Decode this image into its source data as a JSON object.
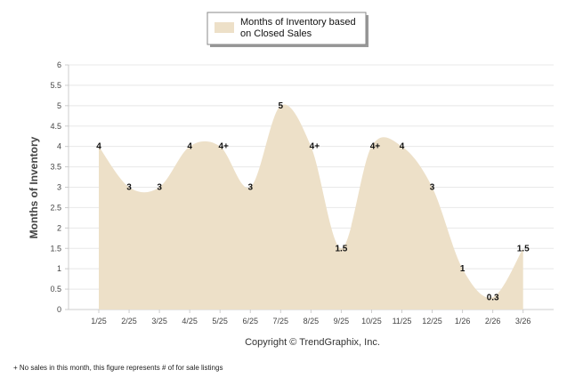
{
  "colors": {
    "area_fill": "#EDE0C8",
    "grid": "#E8E8E8",
    "axis": "#CCCCCC",
    "text": "#444444"
  },
  "legend": {
    "line1": "Months of Inventory based",
    "line2": "on Closed Sales"
  },
  "copyright": "Copyright © TrendGraphix, Inc.",
  "footnote": "+  No sales in this month, this figure represents # of for sale listings",
  "chart_data": {
    "type": "area",
    "title": "",
    "xlabel": "",
    "ylabel": "Months of Inventory",
    "ylim": [
      0,
      6
    ],
    "yticks": [
      "0",
      "0.5",
      "1",
      "1.5",
      "2",
      "2.5",
      "3",
      "3.5",
      "4",
      "4.5",
      "5",
      "5.5",
      "6"
    ],
    "categories": [
      "1/25",
      "2/25",
      "3/25",
      "4/25",
      "5/25",
      "6/25",
      "7/25",
      "8/25",
      "9/25",
      "10/25",
      "11/25",
      "12/25",
      "1/26",
      "2/26",
      "3/26"
    ],
    "series": [
      {
        "name": "Months of Inventory based on Closed Sales",
        "values": [
          4,
          3,
          3,
          4,
          4,
          3,
          5,
          4,
          1.5,
          4,
          4,
          3,
          1,
          0.3,
          1.5
        ],
        "labels": [
          "4",
          "3",
          "3",
          "4",
          "4+",
          "3",
          "5",
          "4+",
          "1.5",
          "4+",
          "4",
          "3",
          "1",
          "0.3",
          "1.5"
        ]
      }
    ],
    "legend_position": "top-center",
    "grid": true
  }
}
